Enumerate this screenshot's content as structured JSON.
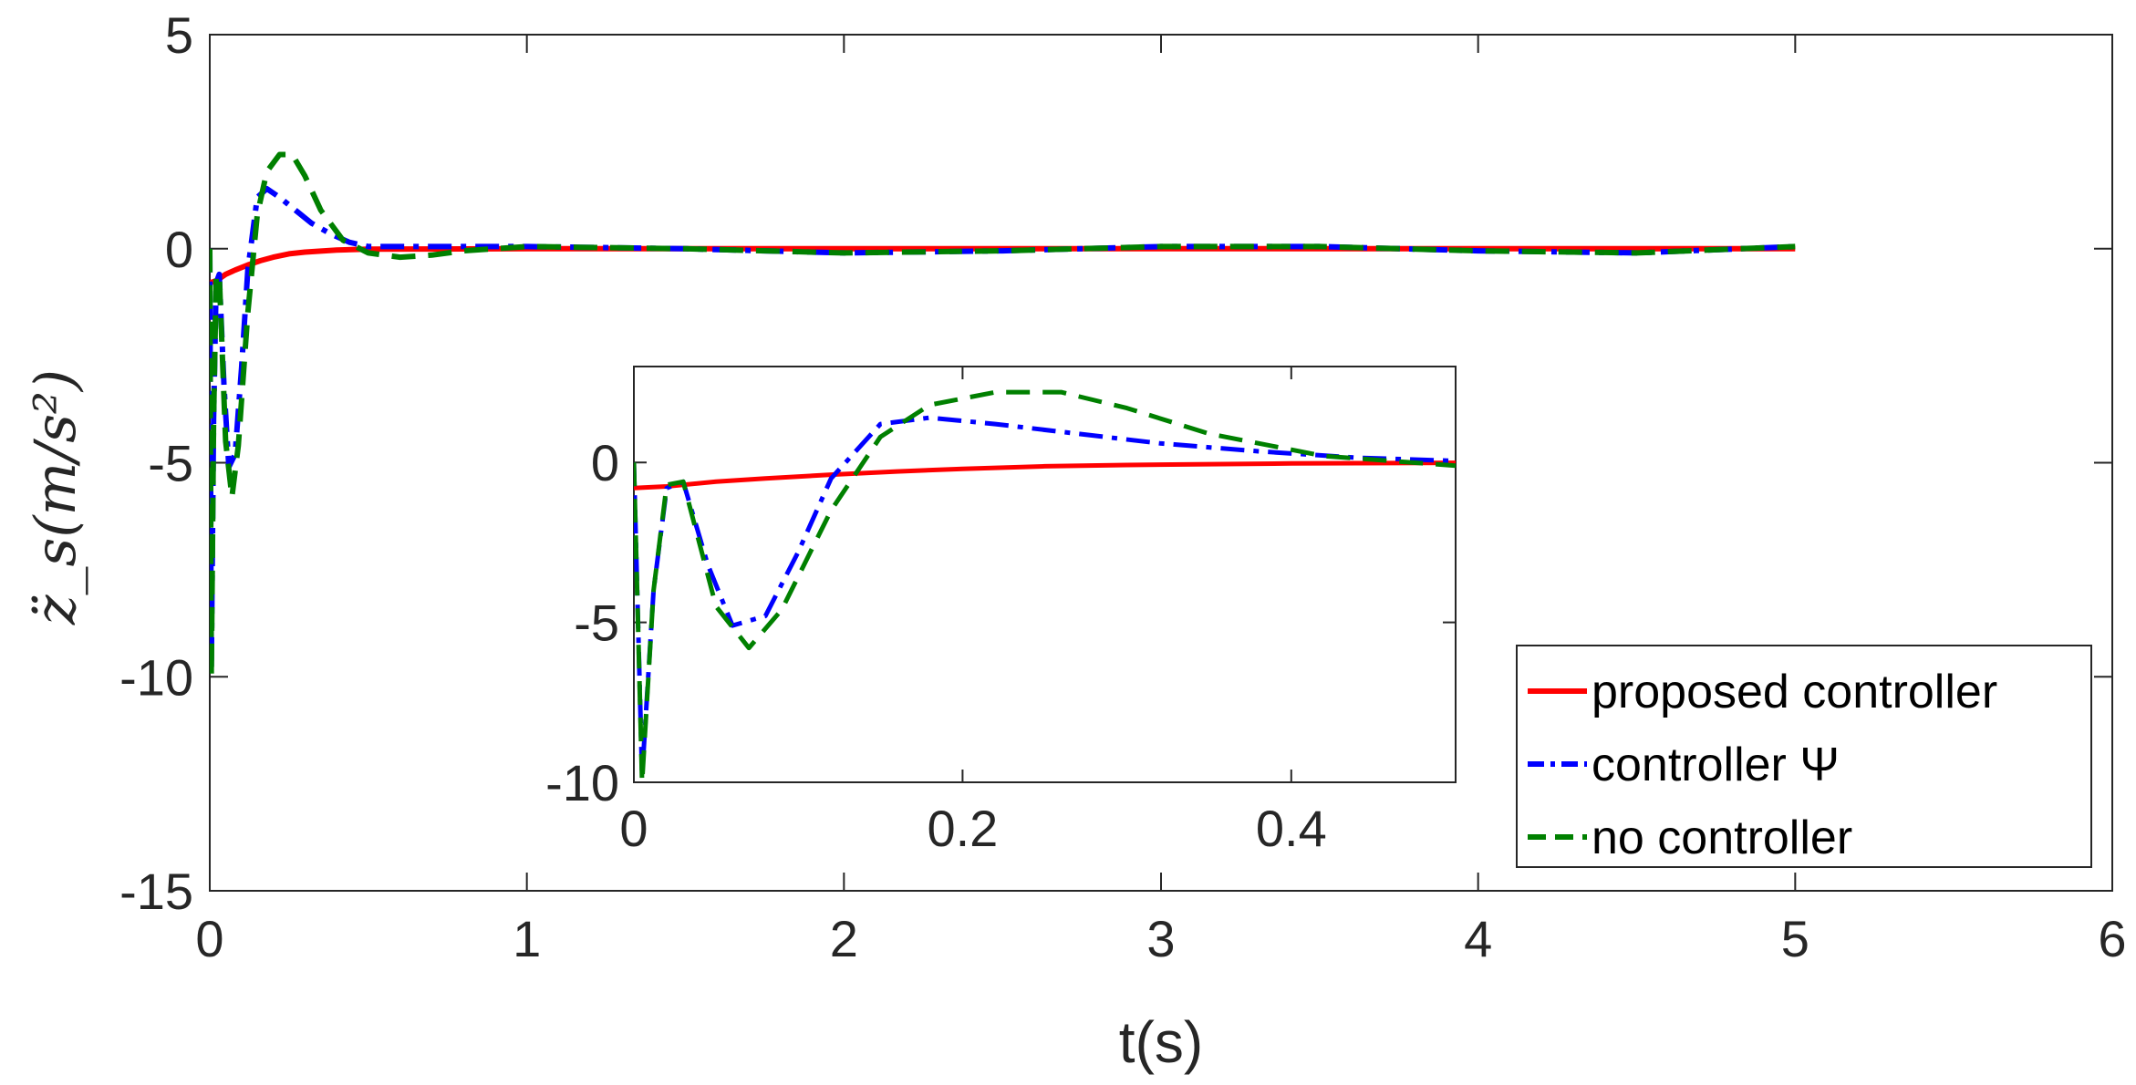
{
  "chart_data": [
    {
      "type": "line",
      "title": "",
      "xlabel": "t(s)",
      "ylabel": "z̈_s(m/s²)",
      "xlim": [
        0,
        6
      ],
      "ylim": [
        -15,
        5
      ],
      "xticks": [
        "0",
        "1",
        "2",
        "3",
        "4",
        "5",
        "6"
      ],
      "yticks": [
        "5",
        "0",
        "-5",
        "-10",
        "-15"
      ],
      "grid": false,
      "legend_position": "bottom-right",
      "series": [
        {
          "name": "proposed controller",
          "color": "#ff0000",
          "style": "solid",
          "x": [
            0,
            0.02,
            0.05,
            0.08,
            0.12,
            0.16,
            0.2,
            0.25,
            0.3,
            0.4,
            0.5,
            1.0,
            2.0,
            3.0,
            4.0,
            5.0
          ],
          "y": [
            -0.8,
            -0.75,
            -0.6,
            -0.5,
            -0.38,
            -0.28,
            -0.2,
            -0.12,
            -0.08,
            -0.03,
            -0.01,
            0,
            0,
            0,
            0,
            0
          ]
        },
        {
          "name": "controller Ψ",
          "color": "#0000ff",
          "style": "dashdot",
          "x": [
            0,
            0.005,
            0.012,
            0.02,
            0.03,
            0.045,
            0.06,
            0.08,
            0.1,
            0.12,
            0.15,
            0.18,
            0.22,
            0.27,
            0.32,
            0.38,
            0.44,
            0.5,
            0.6,
            0.7,
            1.0,
            1.5,
            2.0,
            2.5,
            3.0,
            3.5,
            4.0,
            4.5,
            5.0
          ],
          "y": [
            0,
            -9.8,
            -4,
            -0.8,
            -0.6,
            -3.2,
            -5.1,
            -4.8,
            -2.8,
            -0.5,
            1.2,
            1.4,
            1.2,
            0.9,
            0.6,
            0.35,
            0.15,
            0.05,
            0.05,
            0.05,
            0.05,
            0,
            -0.1,
            -0.05,
            0.05,
            0.05,
            -0.05,
            -0.1,
            0.05
          ]
        },
        {
          "name": "no controller",
          "color": "#008000",
          "style": "dashed",
          "x": [
            0,
            0.005,
            0.012,
            0.02,
            0.03,
            0.05,
            0.07,
            0.09,
            0.12,
            0.15,
            0.18,
            0.22,
            0.26,
            0.3,
            0.35,
            0.42,
            0.5,
            0.6,
            0.7,
            0.8,
            1.0,
            1.5,
            2.0,
            2.5,
            3.0,
            3.5,
            4.0,
            4.5,
            5.0
          ],
          "y": [
            0,
            -10,
            -4,
            -0.7,
            -0.6,
            -4.5,
            -5.8,
            -4.6,
            -1.5,
            0.8,
            1.8,
            2.2,
            2.2,
            1.7,
            0.9,
            0.2,
            -0.1,
            -0.2,
            -0.15,
            -0.05,
            0.05,
            0,
            -0.1,
            -0.05,
            0.05,
            0.05,
            -0.05,
            -0.1,
            0.05
          ]
        }
      ]
    },
    {
      "type": "line",
      "title": "",
      "xlabel": "",
      "ylabel": "",
      "xlim": [
        0,
        0.5
      ],
      "ylim": [
        -10,
        3
      ],
      "xticks": [
        "0",
        "0.2",
        "0.4"
      ],
      "yticks": [
        "0",
        "-5",
        "-10"
      ],
      "grid": false,
      "series_ref": "same as main chart (zoomed inset)"
    }
  ]
}
